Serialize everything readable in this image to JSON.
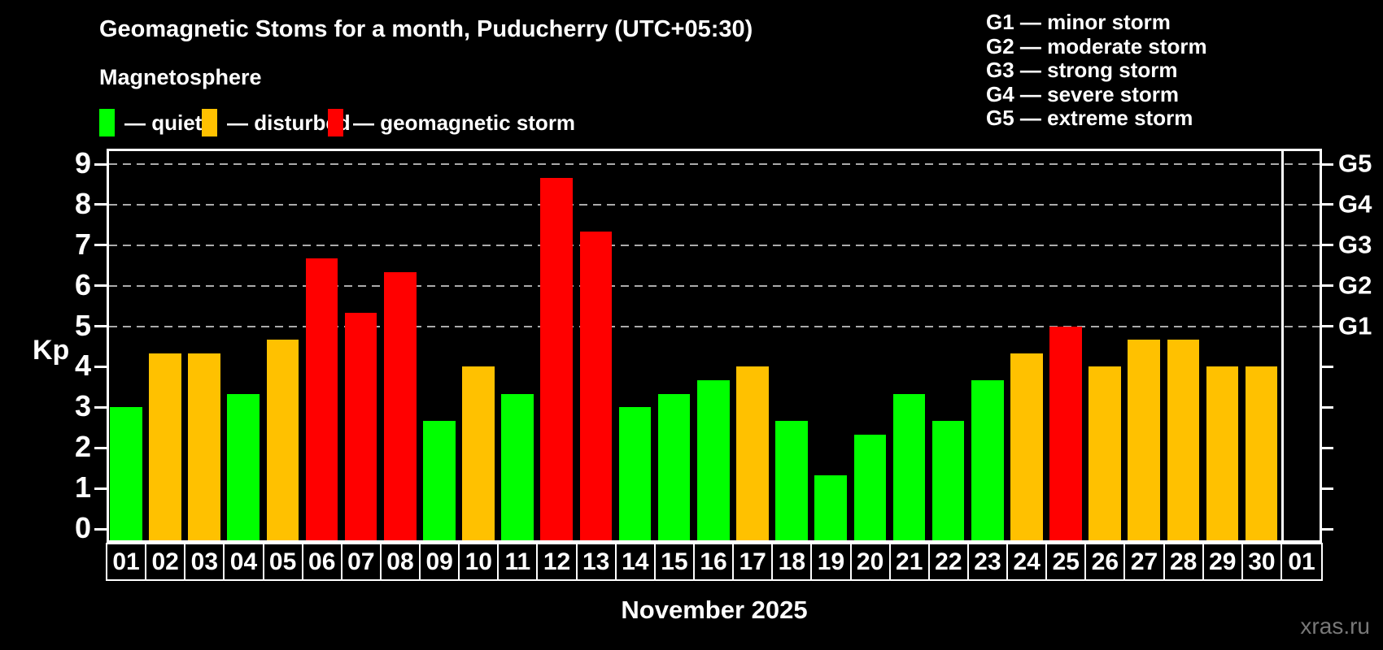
{
  "header": {
    "title": "Geomagnetic Stoms for a month, Puducherry (UTC+05:30)",
    "subtitle": "Magnetosphere"
  },
  "legend": {
    "items": [
      {
        "name": "quiet",
        "label": "— quiet",
        "color": "#00ff00"
      },
      {
        "name": "disturbed",
        "label": "— disturbed",
        "color": "#ffc100"
      },
      {
        "name": "storm",
        "label": "— geomagnetic storm",
        "color": "#ff0000"
      }
    ]
  },
  "g_scale": {
    "items": [
      {
        "label": "G1 — minor storm"
      },
      {
        "label": "G2 — moderate storm"
      },
      {
        "label": "G3 — strong storm"
      },
      {
        "label": "G4 — severe storm"
      },
      {
        "label": "G5 — extreme storm"
      }
    ]
  },
  "axes": {
    "y_title": "Kp",
    "x_title": "November 2025",
    "y_ticks": [
      0,
      1,
      2,
      3,
      4,
      5,
      6,
      7,
      8,
      9
    ]
  },
  "footer": {
    "watermark": "xras.ru"
  },
  "chart_data": {
    "type": "bar",
    "title": "Geomagnetic Stoms for a month, Puducherry (UTC+05:30)",
    "xlabel": "November 2025",
    "ylabel": "Kp",
    "ylim": [
      0,
      9
    ],
    "grid": "dashed horizontal at 5-9 only",
    "gridlines_at": [
      5,
      6,
      7,
      8,
      9
    ],
    "legend_position": "top-left",
    "categories": [
      "01",
      "02",
      "03",
      "04",
      "05",
      "06",
      "07",
      "08",
      "09",
      "10",
      "11",
      "12",
      "13",
      "14",
      "15",
      "16",
      "17",
      "18",
      "19",
      "20",
      "21",
      "22",
      "23",
      "24",
      "25",
      "26",
      "27",
      "28",
      "29",
      "30",
      "01"
    ],
    "values": [
      3,
      4.33,
      4.33,
      3.33,
      4.67,
      6.67,
      5.33,
      6.33,
      2.67,
      4,
      3.33,
      8.67,
      7.33,
      3,
      3.33,
      3.67,
      4,
      2.67,
      1.33,
      2.33,
      3.33,
      2.67,
      3.67,
      4.33,
      5,
      4,
      4.67,
      4.67,
      4,
      4,
      null
    ],
    "statuses": [
      "quiet",
      "disturbed",
      "disturbed",
      "quiet",
      "disturbed",
      "storm",
      "storm",
      "storm",
      "quiet",
      "disturbed",
      "quiet",
      "storm",
      "storm",
      "quiet",
      "quiet",
      "quiet",
      "disturbed",
      "quiet",
      "quiet",
      "quiet",
      "quiet",
      "quiet",
      "quiet",
      "disturbed",
      "storm",
      "disturbed",
      "disturbed",
      "disturbed",
      "disturbed",
      "disturbed",
      null
    ],
    "status_colors": {
      "quiet": "#00ff00",
      "disturbed": "#ffc100",
      "storm": "#ff0000"
    },
    "right_axis_labels": {
      "5": "G1",
      "6": "G2",
      "7": "G3",
      "8": "G4",
      "9": "G5"
    }
  }
}
